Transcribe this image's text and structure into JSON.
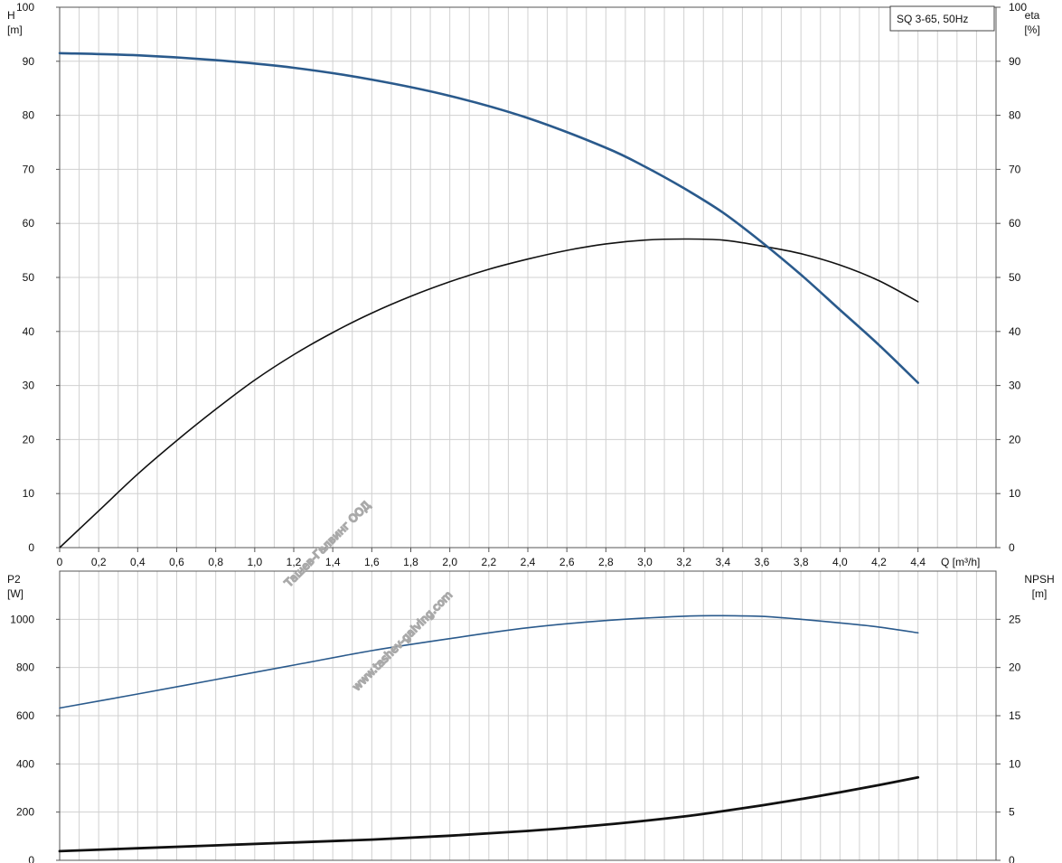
{
  "chart_data": [
    {
      "type": "line",
      "panel": "top",
      "box_label": "SQ 3-65, 50Hz",
      "left_axis": {
        "name": "H",
        "unit": "[m]",
        "ylim": [
          0,
          100
        ],
        "ticks": [
          0,
          10,
          20,
          30,
          40,
          50,
          60,
          70,
          80,
          90,
          100
        ]
      },
      "right_axis": {
        "name": "eta",
        "unit": "[%]",
        "ylim": [
          0,
          100
        ],
        "ticks": [
          0,
          10,
          20,
          30,
          40,
          50,
          60,
          70,
          80,
          90,
          100
        ]
      },
      "x_axis": {
        "unit_label": "Q [m³/h]",
        "xlim": [
          0,
          4.8
        ],
        "tick_values": [
          0,
          0.2,
          0.4,
          0.6,
          0.8,
          1.0,
          1.2,
          1.4,
          1.6,
          1.8,
          2.0,
          2.2,
          2.4,
          2.6,
          2.8,
          3.0,
          3.2,
          3.4,
          3.6,
          3.8,
          4.0,
          4.2,
          4.4
        ],
        "tick_labels": [
          "0",
          "0,2",
          "0,4",
          "0,6",
          "0,8",
          "1,0",
          "1,2",
          "1,4",
          "1,6",
          "1,8",
          "2,0",
          "2,2",
          "2,4",
          "2,6",
          "2,8",
          "3,0",
          "3,2",
          "3,4",
          "3,6",
          "3,8",
          "4,0",
          "4,2",
          "4,4"
        ]
      },
      "grid": true,
      "series": [
        {
          "key": "H",
          "axis": "left",
          "color": "#2a5a8c",
          "x": [
            0,
            0.4,
            0.8,
            1.2,
            1.6,
            2.0,
            2.4,
            2.8,
            3.0,
            3.2,
            3.4,
            3.6,
            3.8,
            4.0,
            4.2,
            4.4
          ],
          "values": [
            91.5,
            91.1,
            90.2,
            88.8,
            86.6,
            83.6,
            79.5,
            74.0,
            70.5,
            66.5,
            62.0,
            56.5,
            50.5,
            44.0,
            37.5,
            30.5
          ]
        },
        {
          "key": "eta",
          "axis": "right",
          "color": "#111111",
          "x": [
            0,
            0.2,
            0.4,
            0.6,
            0.8,
            1.0,
            1.2,
            1.4,
            1.6,
            1.8,
            2.0,
            2.2,
            2.4,
            2.6,
            2.8,
            3.0,
            3.2,
            3.4,
            3.6,
            3.8,
            4.0,
            4.2,
            4.4
          ],
          "values": [
            0,
            6.8,
            13.6,
            19.8,
            25.6,
            31.0,
            35.7,
            39.8,
            43.4,
            46.5,
            49.2,
            51.5,
            53.4,
            55.0,
            56.2,
            56.9,
            57.1,
            56.9,
            55.8,
            54.4,
            52.3,
            49.4,
            45.5
          ]
        }
      ]
    },
    {
      "type": "line",
      "panel": "bottom",
      "left_axis": {
        "name": "P2",
        "unit": "[W]",
        "ylim": [
          0,
          1200
        ],
        "ticks": [
          0,
          200,
          400,
          600,
          800,
          1000
        ]
      },
      "right_axis": {
        "name": "NPSH",
        "unit": "[m]",
        "ylim": [
          0,
          30
        ],
        "ticks": [
          0,
          5,
          10,
          15,
          20,
          25
        ]
      },
      "xlim": [
        0,
        4.8
      ],
      "grid": true,
      "series": [
        {
          "key": "P2",
          "axis": "left",
          "color": "#2a5a8c",
          "x": [
            0,
            0.4,
            0.8,
            1.2,
            1.6,
            2.0,
            2.4,
            2.8,
            3.2,
            3.4,
            3.6,
            3.8,
            4.0,
            4.2,
            4.4
          ],
          "values": [
            632,
            690,
            750,
            810,
            870,
            920,
            965,
            995,
            1013,
            1015,
            1012,
            1000,
            985,
            968,
            944
          ]
        },
        {
          "key": "NPSH",
          "axis": "right",
          "color": "#111111",
          "x": [
            0,
            0.4,
            0.8,
            1.2,
            1.6,
            2.0,
            2.4,
            2.8,
            3.2,
            3.4,
            3.6,
            3.8,
            4.0,
            4.2,
            4.4
          ],
          "values": [
            0.95,
            1.25,
            1.55,
            1.85,
            2.15,
            2.55,
            3.05,
            3.7,
            4.55,
            5.1,
            5.7,
            6.35,
            7.05,
            7.8,
            8.6
          ]
        }
      ]
    }
  ],
  "watermark": {
    "lines": [
      "Ташев-Галвинг ООД",
      "www.tashev-galving.com"
    ]
  }
}
